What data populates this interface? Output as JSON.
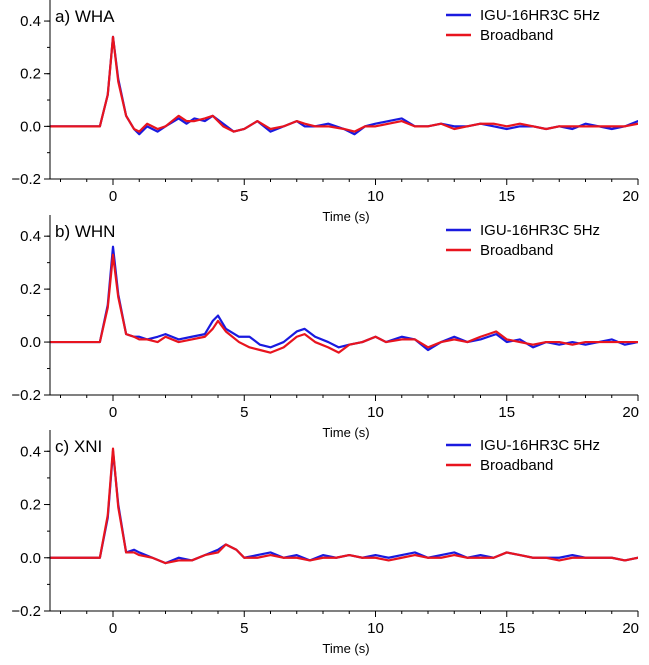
{
  "colors": {
    "series_a": "#1a1adf",
    "series_b": "#e8141e",
    "axis": "#000000"
  },
  "chart_data": [
    {
      "type": "line",
      "panel_label": "a) WHA",
      "xlabel": "Time (s)",
      "ylabel": "",
      "xlim": [
        -2.4,
        20
      ],
      "ylim": [
        -0.2,
        0.48
      ],
      "xticks": [
        0,
        5,
        10,
        15,
        20
      ],
      "xtick_labels": [
        "0",
        "5",
        "10",
        "15",
        "20"
      ],
      "yticks": [
        -0.2,
        0.0,
        0.2,
        0.4
      ],
      "ytick_labels": [
        "−0.2",
        "0.0",
        "0.2",
        "0.4"
      ],
      "legend_position": "top-right",
      "series": [
        {
          "name": "IGU-16HR3C 5Hz",
          "x": [
            -2.4,
            -0.5,
            -0.2,
            0,
            0.2,
            0.5,
            0.8,
            1.0,
            1.3,
            1.7,
            2.0,
            2.5,
            2.8,
            3.1,
            3.5,
            3.8,
            4.2,
            4.6,
            5.0,
            5.5,
            6.0,
            6.5,
            7.0,
            7.3,
            7.7,
            8.2,
            8.8,
            9.2,
            9.6,
            10.0,
            10.5,
            11.0,
            11.5,
            12.0,
            12.5,
            13.0,
            13.5,
            14.0,
            14.5,
            15.0,
            15.5,
            16.0,
            16.5,
            17.0,
            17.5,
            18.0,
            18.5,
            19.0,
            19.5,
            20.0
          ],
          "y": [
            0,
            0,
            0.12,
            0.34,
            0.18,
            0.04,
            -0.01,
            -0.03,
            0.0,
            -0.02,
            0.0,
            0.03,
            0.01,
            0.03,
            0.02,
            0.04,
            0.01,
            -0.02,
            -0.01,
            0.02,
            -0.02,
            0.0,
            0.02,
            0.0,
            0.0,
            0.01,
            -0.01,
            -0.03,
            0.0,
            0.01,
            0.02,
            0.03,
            0.0,
            0.0,
            0.01,
            0.0,
            0.0,
            0.01,
            0.0,
            -0.01,
            0.0,
            0.0,
            -0.01,
            0.0,
            -0.01,
            0.01,
            0.0,
            -0.01,
            0.0,
            0.02
          ]
        },
        {
          "name": "Broadband",
          "x": [
            -2.4,
            -0.5,
            -0.2,
            0,
            0.2,
            0.5,
            0.8,
            1.0,
            1.3,
            1.7,
            2.0,
            2.5,
            2.8,
            3.1,
            3.5,
            3.8,
            4.2,
            4.6,
            5.0,
            5.5,
            6.0,
            6.5,
            7.0,
            7.3,
            7.7,
            8.2,
            8.8,
            9.2,
            9.6,
            10.0,
            10.5,
            11.0,
            11.5,
            12.0,
            12.5,
            13.0,
            13.5,
            14.0,
            14.5,
            15.0,
            15.5,
            16.0,
            16.5,
            17.0,
            17.5,
            18.0,
            18.5,
            19.0,
            19.5,
            20.0
          ],
          "y": [
            0,
            0,
            0.12,
            0.34,
            0.17,
            0.04,
            -0.01,
            -0.02,
            0.01,
            -0.01,
            0.0,
            0.04,
            0.02,
            0.02,
            0.03,
            0.04,
            0.0,
            -0.02,
            -0.01,
            0.02,
            -0.01,
            0.0,
            0.02,
            0.01,
            0.0,
            0.0,
            -0.01,
            -0.02,
            0.0,
            0.0,
            0.01,
            0.02,
            0.0,
            0.0,
            0.01,
            -0.01,
            0.0,
            0.01,
            0.01,
            0.0,
            0.01,
            0.0,
            -0.01,
            0.0,
            0.0,
            0.0,
            0.0,
            0.0,
            0.0,
            0.01
          ]
        }
      ]
    },
    {
      "type": "line",
      "panel_label": "b) WHN",
      "xlabel": "Time (s)",
      "ylabel": "",
      "xlim": [
        -2.4,
        20
      ],
      "ylim": [
        -0.2,
        0.48
      ],
      "xticks": [
        0,
        5,
        10,
        15,
        20
      ],
      "xtick_labels": [
        "0",
        "5",
        "10",
        "15",
        "20"
      ],
      "yticks": [
        -0.2,
        0.0,
        0.2,
        0.4
      ],
      "ytick_labels": [
        "−0.2",
        "0.0",
        "0.2",
        "0.4"
      ],
      "legend_position": "top-right",
      "series": [
        {
          "name": "IGU-16HR3C 5Hz",
          "x": [
            -2.4,
            -0.5,
            -0.2,
            0,
            0.2,
            0.5,
            0.8,
            1.0,
            1.3,
            1.7,
            2.0,
            2.5,
            3.0,
            3.5,
            3.8,
            4.0,
            4.3,
            4.8,
            5.2,
            5.6,
            6.0,
            6.5,
            7.0,
            7.3,
            7.7,
            8.2,
            8.6,
            9.0,
            9.5,
            10.0,
            10.4,
            11.0,
            11.5,
            12.0,
            12.5,
            13.0,
            13.5,
            14.0,
            14.3,
            14.6,
            15.0,
            15.5,
            16.0,
            16.5,
            17.0,
            17.5,
            18.0,
            18.5,
            19.0,
            19.5,
            20.0
          ],
          "y": [
            0,
            0,
            0.14,
            0.36,
            0.18,
            0.03,
            0.02,
            0.02,
            0.01,
            0.02,
            0.03,
            0.01,
            0.02,
            0.03,
            0.08,
            0.1,
            0.05,
            0.02,
            0.02,
            -0.01,
            -0.02,
            0.0,
            0.04,
            0.05,
            0.02,
            0.0,
            -0.02,
            -0.01,
            0.0,
            0.02,
            0.0,
            0.02,
            0.01,
            -0.03,
            0.0,
            0.02,
            0.0,
            0.01,
            0.02,
            0.03,
            0.0,
            0.01,
            -0.02,
            0.0,
            -0.01,
            0.0,
            -0.01,
            0.0,
            0.01,
            -0.01,
            0.0
          ]
        },
        {
          "name": "Broadband",
          "x": [
            -2.4,
            -0.5,
            -0.2,
            0,
            0.2,
            0.5,
            0.8,
            1.0,
            1.3,
            1.7,
            2.0,
            2.5,
            3.0,
            3.5,
            3.8,
            4.0,
            4.3,
            4.8,
            5.2,
            5.6,
            6.0,
            6.5,
            7.0,
            7.3,
            7.7,
            8.2,
            8.6,
            9.0,
            9.5,
            10.0,
            10.4,
            11.0,
            11.5,
            12.0,
            12.5,
            13.0,
            13.5,
            14.0,
            14.3,
            14.6,
            15.0,
            15.5,
            16.0,
            16.5,
            17.0,
            17.5,
            18.0,
            18.5,
            19.0,
            19.5,
            20.0
          ],
          "y": [
            0,
            0,
            0.13,
            0.33,
            0.17,
            0.03,
            0.02,
            0.01,
            0.01,
            0.0,
            0.02,
            0.0,
            0.01,
            0.02,
            0.05,
            0.08,
            0.04,
            0.0,
            -0.02,
            -0.03,
            -0.04,
            -0.02,
            0.02,
            0.03,
            0.0,
            -0.02,
            -0.04,
            -0.01,
            0.0,
            0.02,
            0.0,
            0.01,
            0.01,
            -0.02,
            0.0,
            0.01,
            0.0,
            0.02,
            0.03,
            0.04,
            0.01,
            0.0,
            -0.01,
            0.0,
            0.0,
            -0.01,
            0.0,
            0.0,
            0.0,
            0.0,
            0.0
          ]
        }
      ]
    },
    {
      "type": "line",
      "panel_label": "c) XNI",
      "xlabel": "Time (s)",
      "ylabel": "",
      "xlim": [
        -2.4,
        20
      ],
      "ylim": [
        -0.2,
        0.48
      ],
      "xticks": [
        0,
        5,
        10,
        15,
        20
      ],
      "xtick_labels": [
        "0",
        "5",
        "10",
        "15",
        "20"
      ],
      "yticks": [
        -0.2,
        0.0,
        0.2,
        0.4
      ],
      "ytick_labels": [
        "−0.2",
        "0.0",
        "0.2",
        "0.4"
      ],
      "legend_position": "top-right",
      "series": [
        {
          "name": "IGU-16HR3C 5Hz",
          "x": [
            -2.4,
            -0.5,
            -0.2,
            0,
            0.2,
            0.5,
            0.8,
            1.0,
            1.5,
            2.0,
            2.5,
            3.0,
            3.5,
            4.0,
            4.3,
            4.7,
            5.0,
            5.5,
            6.0,
            6.5,
            7.0,
            7.5,
            8.0,
            8.5,
            9.0,
            9.5,
            10.0,
            10.5,
            11.0,
            11.5,
            12.0,
            12.5,
            13.0,
            13.5,
            14.0,
            14.5,
            15.0,
            15.5,
            16.0,
            16.5,
            17.0,
            17.5,
            18.0,
            18.5,
            19.0,
            19.5,
            20.0
          ],
          "y": [
            0,
            0,
            0.15,
            0.4,
            0.2,
            0.02,
            0.03,
            0.02,
            0.0,
            -0.02,
            0.0,
            -0.01,
            0.01,
            0.03,
            0.05,
            0.03,
            0.0,
            0.01,
            0.02,
            0.0,
            0.01,
            -0.01,
            0.01,
            0.0,
            0.01,
            0.0,
            0.01,
            0.0,
            0.01,
            0.02,
            0.0,
            0.01,
            0.02,
            0.0,
            0.01,
            0.0,
            0.02,
            0.01,
            0.0,
            0.0,
            0.0,
            0.01,
            0.0,
            0.0,
            0.0,
            -0.01,
            0.0
          ]
        },
        {
          "name": "Broadband",
          "x": [
            -2.4,
            -0.5,
            -0.2,
            0,
            0.2,
            0.5,
            0.8,
            1.0,
            1.5,
            2.0,
            2.5,
            3.0,
            3.5,
            4.0,
            4.3,
            4.7,
            5.0,
            5.5,
            6.0,
            6.5,
            7.0,
            7.5,
            8.0,
            8.5,
            9.0,
            9.5,
            10.0,
            10.5,
            11.0,
            11.5,
            12.0,
            12.5,
            13.0,
            13.5,
            14.0,
            14.5,
            15.0,
            15.5,
            16.0,
            16.5,
            17.0,
            17.5,
            18.0,
            18.5,
            19.0,
            19.5,
            20.0
          ],
          "y": [
            0,
            0,
            0.16,
            0.41,
            0.19,
            0.02,
            0.02,
            0.01,
            0.0,
            -0.02,
            -0.01,
            -0.01,
            0.01,
            0.02,
            0.05,
            0.03,
            0.0,
            0.0,
            0.01,
            0.0,
            0.0,
            -0.01,
            0.0,
            0.0,
            0.01,
            0.0,
            0.0,
            -0.01,
            0.0,
            0.01,
            0.0,
            0.0,
            0.01,
            0.0,
            0.0,
            0.0,
            0.02,
            0.01,
            0.0,
            0.0,
            -0.01,
            0.0,
            0.0,
            0.0,
            0.0,
            -0.01,
            0.0
          ]
        }
      ]
    }
  ]
}
